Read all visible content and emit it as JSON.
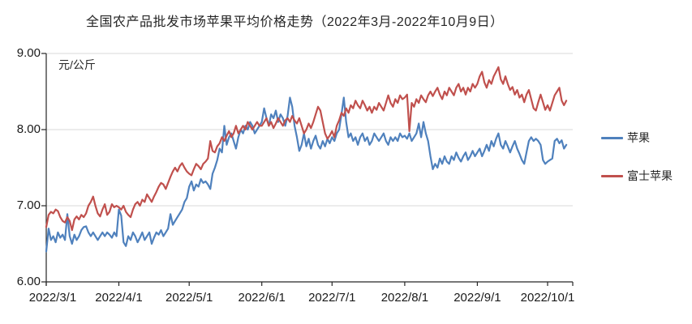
{
  "page": {
    "background": "#ffffff"
  },
  "chart_data": {
    "type": "line",
    "title": "全国农产品批发市场苹果平均价格走势（2022年3月-2022年10月9日）",
    "ylabel": "元/公斤",
    "xlabel": "",
    "ylim": [
      6.0,
      9.0
    ],
    "grid": true,
    "legend_position": "right",
    "x_start": "2022/3/1",
    "x_end": "2022/10/9",
    "point_interval": "daily",
    "y_ticks": [
      {
        "label": "6.00",
        "value": 6.0
      },
      {
        "label": "7.00",
        "value": 7.0
      },
      {
        "label": "8.00",
        "value": 8.0
      },
      {
        "label": "9.00",
        "value": 9.0
      }
    ],
    "x_ticks": [
      {
        "label": "2022/3/1",
        "day": 0
      },
      {
        "label": "2022/4/1",
        "day": 31
      },
      {
        "label": "2022/5/1",
        "day": 61
      },
      {
        "label": "2022/6/1",
        "day": 92
      },
      {
        "label": "2022/7/1",
        "day": 122
      },
      {
        "label": "2022/8/1",
        "day": 153
      },
      {
        "label": "2022/9/1",
        "day": 184
      },
      {
        "label": "2022/10/1",
        "day": 214
      }
    ],
    "colors": {
      "gridline": "#d9d9d9",
      "axis": "#262626",
      "text": "#262626"
    },
    "series": [
      {
        "name": "苹果",
        "color": "#4F81BD",
        "values": [
          6.4,
          6.7,
          6.55,
          6.6,
          6.52,
          6.65,
          6.58,
          6.62,
          6.55,
          6.89,
          6.6,
          6.5,
          6.62,
          6.55,
          6.6,
          6.68,
          6.72,
          6.73,
          6.65,
          6.6,
          6.65,
          6.6,
          6.55,
          6.6,
          6.65,
          6.6,
          6.65,
          6.62,
          6.58,
          6.65,
          6.6,
          6.95,
          6.87,
          6.52,
          6.47,
          6.6,
          6.55,
          6.65,
          6.6,
          6.52,
          6.58,
          6.65,
          6.55,
          6.6,
          6.65,
          6.5,
          6.58,
          6.65,
          6.62,
          6.68,
          6.6,
          6.65,
          6.7,
          6.89,
          6.75,
          6.8,
          6.85,
          6.9,
          6.95,
          7.05,
          7.1,
          7.25,
          7.32,
          7.2,
          7.28,
          7.25,
          7.35,
          7.3,
          7.32,
          7.28,
          7.22,
          7.42,
          7.5,
          7.6,
          7.75,
          7.7,
          8.05,
          7.8,
          7.9,
          7.95,
          7.85,
          7.75,
          7.9,
          8.0,
          7.95,
          8.05,
          8.0,
          8.1,
          8.05,
          7.95,
          8.0,
          8.05,
          8.1,
          8.28,
          8.15,
          8.05,
          8.2,
          8.15,
          8.25,
          8.1,
          8.2,
          8.15,
          8.05,
          8.18,
          8.42,
          8.3,
          8.05,
          7.9,
          7.72,
          7.8,
          7.95,
          7.78,
          7.88,
          7.75,
          7.85,
          7.92,
          7.8,
          7.75,
          7.85,
          7.78,
          7.88,
          7.82,
          7.9,
          7.85,
          7.95,
          8.0,
          8.2,
          8.42,
          8.1,
          7.9,
          7.95,
          7.85,
          7.9,
          7.8,
          7.9,
          7.95,
          7.85,
          7.9,
          7.8,
          7.85,
          7.95,
          7.9,
          7.85,
          7.9,
          7.95,
          7.85,
          7.8,
          7.9,
          7.85,
          7.9,
          7.85,
          7.95,
          7.9,
          7.92,
          7.88,
          7.95,
          7.85,
          7.9,
          7.95,
          8.08,
          7.9,
          8.1,
          7.95,
          7.85,
          7.65,
          7.48,
          7.55,
          7.5,
          7.62,
          7.55,
          7.65,
          7.58,
          7.55,
          7.65,
          7.6,
          7.7,
          7.63,
          7.58,
          7.65,
          7.7,
          7.6,
          7.65,
          7.72,
          7.65,
          7.7,
          7.75,
          7.65,
          7.72,
          7.8,
          7.72,
          7.85,
          7.78,
          7.88,
          7.95,
          7.8,
          7.75,
          7.85,
          7.78,
          7.7,
          7.78,
          7.85,
          7.75,
          7.68,
          7.6,
          7.55,
          7.7,
          7.85,
          7.9,
          7.85,
          7.88,
          7.85,
          7.8,
          7.6,
          7.55,
          7.58,
          7.6,
          7.62,
          7.85,
          7.88,
          7.82,
          7.86,
          7.75,
          7.8
        ]
      },
      {
        "name": "富士苹果",
        "color": "#C0504D",
        "values": [
          6.72,
          6.88,
          6.92,
          6.9,
          6.95,
          6.93,
          6.85,
          6.8,
          6.78,
          6.85,
          6.8,
          6.68,
          6.82,
          6.86,
          6.82,
          6.88,
          6.85,
          6.9,
          7.0,
          7.05,
          7.12,
          7.0,
          6.9,
          6.86,
          6.95,
          7.02,
          6.88,
          6.92,
          7.02,
          6.98,
          7.0,
          6.98,
          6.95,
          7.0,
          6.92,
          6.88,
          6.85,
          6.95,
          7.02,
          7.05,
          7.0,
          7.08,
          7.05,
          7.15,
          7.1,
          7.05,
          7.12,
          7.18,
          7.25,
          7.3,
          7.28,
          7.22,
          7.3,
          7.38,
          7.45,
          7.5,
          7.45,
          7.52,
          7.56,
          7.5,
          7.45,
          7.42,
          7.4,
          7.48,
          7.55,
          7.52,
          7.48,
          7.55,
          7.58,
          7.62,
          7.85,
          7.72,
          7.7,
          7.78,
          7.82,
          7.9,
          7.85,
          7.92,
          7.98,
          7.9,
          7.95,
          8.05,
          7.95,
          8.0,
          8.05,
          8.0,
          8.1,
          8.05,
          8.0,
          8.05,
          8.1,
          8.05,
          8.05,
          8.1,
          8.15,
          8.05,
          8.1,
          8.02,
          8.08,
          8.15,
          8.1,
          8.05,
          8.12,
          8.15,
          8.1,
          8.18,
          8.12,
          8.08,
          8.15,
          8.05,
          7.95,
          8.0,
          8.08,
          8.02,
          8.1,
          8.2,
          8.3,
          8.25,
          8.1,
          7.95,
          7.88,
          7.92,
          7.98,
          7.9,
          8.05,
          8.12,
          8.22,
          8.18,
          8.28,
          8.22,
          8.32,
          8.28,
          8.38,
          8.32,
          8.28,
          8.38,
          8.32,
          8.25,
          8.3,
          8.22,
          8.3,
          8.26,
          8.35,
          8.3,
          8.25,
          8.35,
          8.45,
          8.35,
          8.3,
          8.4,
          8.35,
          8.45,
          8.4,
          8.42,
          8.46,
          7.98,
          8.35,
          8.3,
          8.4,
          8.35,
          8.45,
          8.4,
          8.36,
          8.45,
          8.5,
          8.44,
          8.5,
          8.55,
          8.46,
          8.4,
          8.5,
          8.45,
          8.55,
          8.5,
          8.45,
          8.55,
          8.6,
          8.5,
          8.55,
          8.46,
          8.55,
          8.5,
          8.6,
          8.55,
          8.6,
          8.7,
          8.76,
          8.62,
          8.55,
          8.65,
          8.6,
          8.7,
          8.76,
          8.82,
          8.66,
          8.6,
          8.7,
          8.6,
          8.52,
          8.56,
          8.46,
          8.52,
          8.42,
          8.46,
          8.36,
          8.46,
          8.52,
          8.4,
          8.28,
          8.25,
          8.36,
          8.46,
          8.36,
          8.26,
          8.32,
          8.25,
          8.35,
          8.45,
          8.5,
          8.55,
          8.38,
          8.32,
          8.38
        ]
      }
    ]
  }
}
